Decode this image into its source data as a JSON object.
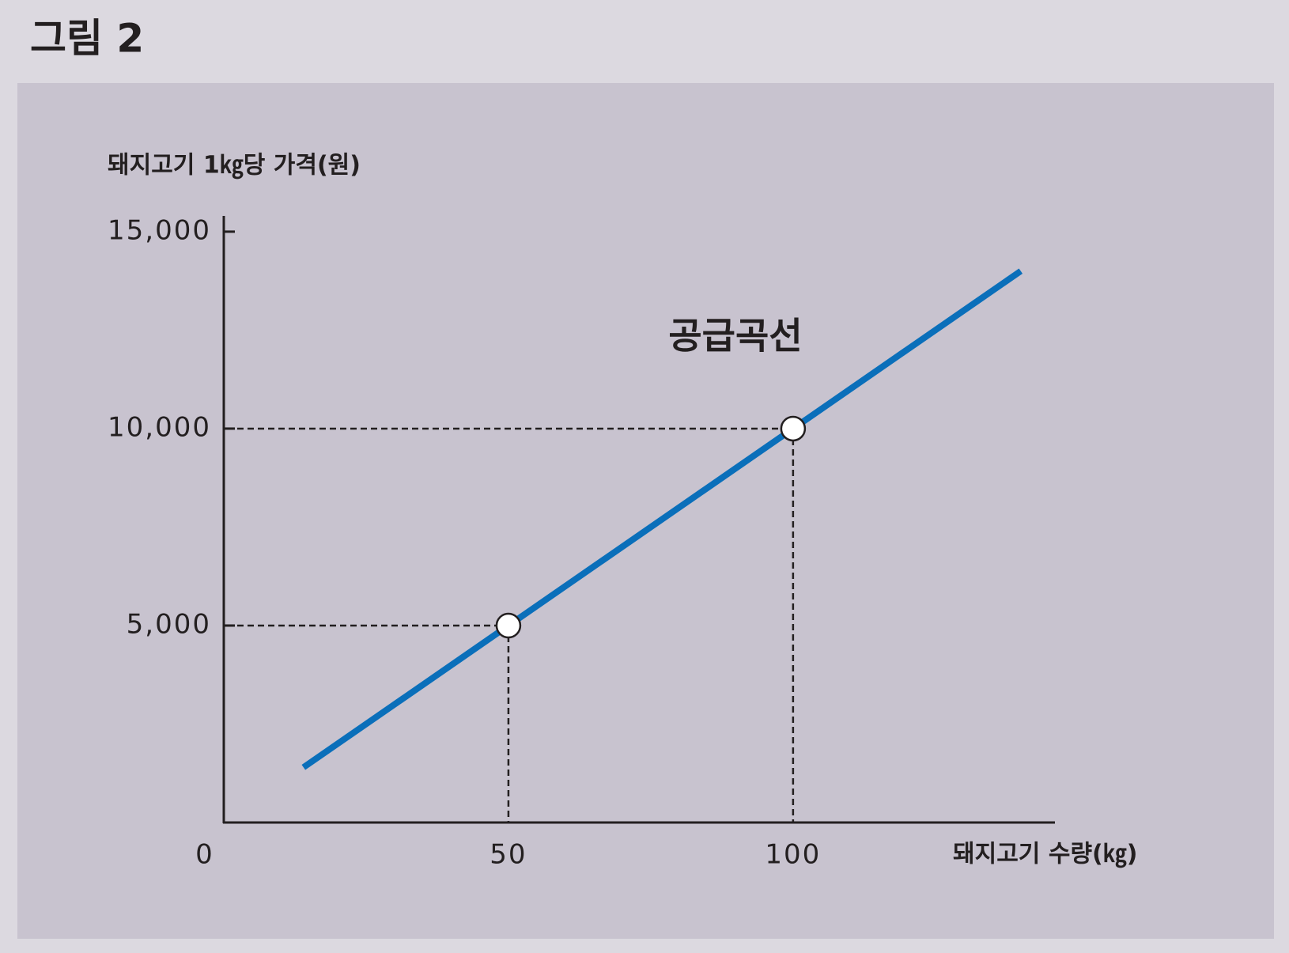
{
  "chart_data": {
    "type": "line",
    "title": "그림 2",
    "ylabel": "돼지고기 1㎏당 가격(원)",
    "xlabel": "돼지고기 수량(㎏)",
    "annotation": "공급곡선",
    "line": {
      "x": [
        14,
        140
      ],
      "values": [
        1400,
        14000
      ],
      "color": "#0a6fba"
    },
    "points": {
      "x": [
        50,
        100
      ],
      "values": [
        5000,
        10000
      ]
    },
    "xlim": [
      0,
      146
    ],
    "ylim": [
      0,
      15400
    ],
    "xticks": [
      0,
      50,
      100
    ],
    "yticks": [
      {
        "value": 5000,
        "label": "5,000"
      },
      {
        "value": 10000,
        "label": "10,000"
      },
      {
        "value": 15000,
        "label": "15,000"
      }
    ]
  }
}
